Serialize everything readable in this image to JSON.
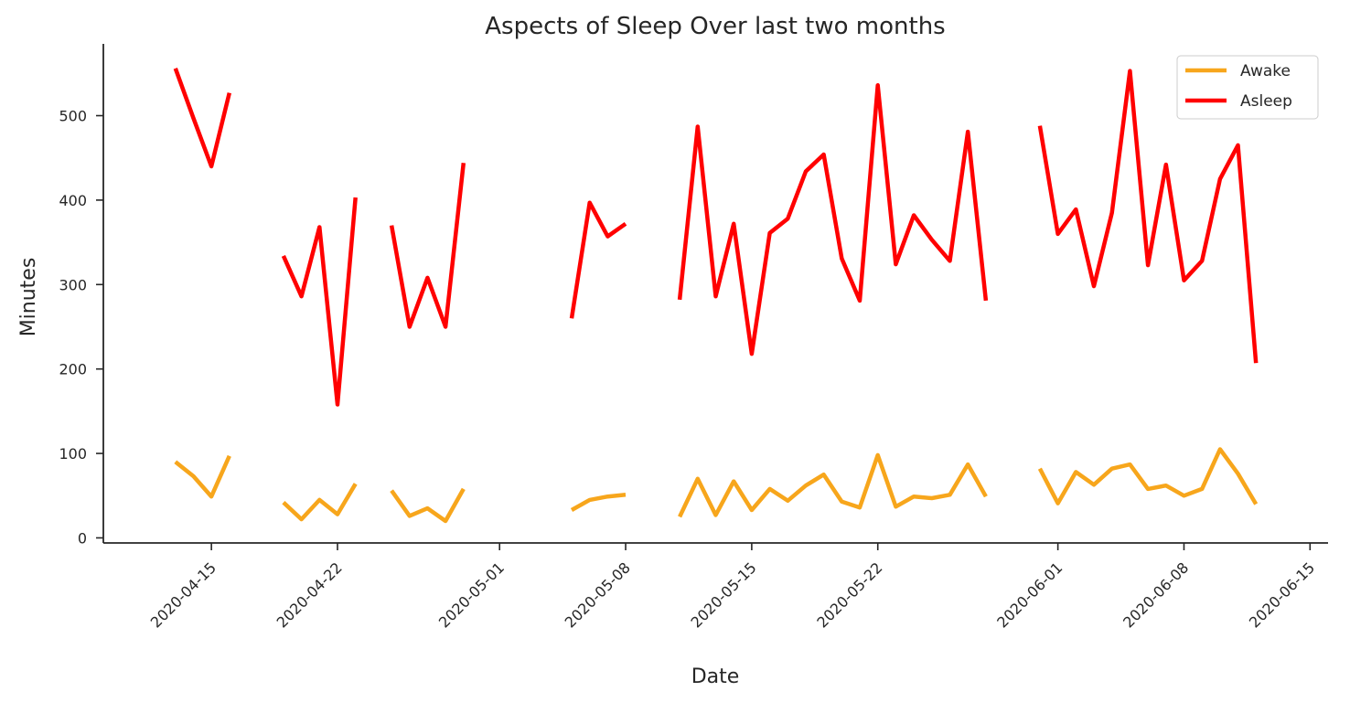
{
  "chart_data": {
    "type": "line",
    "title": "Aspects of Sleep Over last two months",
    "xlabel": "Date",
    "ylabel": "Minutes",
    "xlim": [
      "2020-04-09",
      "2020-06-16"
    ],
    "ylim": [
      -6,
      585
    ],
    "x_ticks": [
      "2020-04-15",
      "2020-04-22",
      "2020-05-01",
      "2020-05-08",
      "2020-05-15",
      "2020-05-22",
      "2020-06-01",
      "2020-06-08",
      "2020-06-15"
    ],
    "y_ticks": [
      0,
      100,
      200,
      300,
      400,
      500
    ],
    "grid": false,
    "legend_position": "top-right",
    "series": [
      {
        "name": "Awake",
        "color": "#f7a61c",
        "points": [
          [
            "2020-04-13",
            90
          ],
          [
            "2020-04-14",
            73
          ],
          [
            "2020-04-15",
            49
          ],
          [
            "2020-04-16",
            97
          ],
          [
            "2020-04-19",
            42
          ],
          [
            "2020-04-20",
            22
          ],
          [
            "2020-04-21",
            45
          ],
          [
            "2020-04-22",
            28
          ],
          [
            "2020-04-23",
            64
          ],
          [
            "2020-04-25",
            56
          ],
          [
            "2020-04-26",
            26
          ],
          [
            "2020-04-27",
            35
          ],
          [
            "2020-04-28",
            20
          ],
          [
            "2020-04-29",
            58
          ],
          [
            "2020-05-05",
            33
          ],
          [
            "2020-05-06",
            45
          ],
          [
            "2020-05-07",
            49
          ],
          [
            "2020-05-08",
            51
          ],
          [
            "2020-05-11",
            25
          ],
          [
            "2020-05-12",
            70
          ],
          [
            "2020-05-13",
            27
          ],
          [
            "2020-05-14",
            67
          ],
          [
            "2020-05-15",
            33
          ],
          [
            "2020-05-16",
            58
          ],
          [
            "2020-05-17",
            44
          ],
          [
            "2020-05-18",
            62
          ],
          [
            "2020-05-19",
            75
          ],
          [
            "2020-05-20",
            43
          ],
          [
            "2020-05-21",
            36
          ],
          [
            "2020-05-22",
            98
          ],
          [
            "2020-05-23",
            37
          ],
          [
            "2020-05-24",
            49
          ],
          [
            "2020-05-25",
            47
          ],
          [
            "2020-05-26",
            51
          ],
          [
            "2020-05-27",
            87
          ],
          [
            "2020-05-28",
            49
          ],
          [
            "2020-05-31",
            82
          ],
          [
            "2020-06-01",
            41
          ],
          [
            "2020-06-02",
            78
          ],
          [
            "2020-06-03",
            63
          ],
          [
            "2020-06-04",
            82
          ],
          [
            "2020-06-05",
            87
          ],
          [
            "2020-06-06",
            58
          ],
          [
            "2020-06-07",
            62
          ],
          [
            "2020-06-08",
            50
          ],
          [
            "2020-06-09",
            58
          ],
          [
            "2020-06-10",
            105
          ],
          [
            "2020-06-11",
            76
          ],
          [
            "2020-06-12",
            40
          ]
        ]
      },
      {
        "name": "Asleep",
        "color": "#ff0000",
        "points": [
          [
            "2020-04-13",
            556
          ],
          [
            "2020-04-14",
            497
          ],
          [
            "2020-04-15",
            440
          ],
          [
            "2020-04-16",
            527
          ],
          [
            "2020-04-19",
            334
          ],
          [
            "2020-04-20",
            286
          ],
          [
            "2020-04-21",
            368
          ],
          [
            "2020-04-22",
            158
          ],
          [
            "2020-04-23",
            403
          ],
          [
            "2020-04-25",
            370
          ],
          [
            "2020-04-26",
            250
          ],
          [
            "2020-04-27",
            308
          ],
          [
            "2020-04-28",
            250
          ],
          [
            "2020-04-29",
            444
          ],
          [
            "2020-05-05",
            260
          ],
          [
            "2020-05-06",
            397
          ],
          [
            "2020-05-07",
            357
          ],
          [
            "2020-05-08",
            372
          ],
          [
            "2020-05-11",
            282
          ],
          [
            "2020-05-12",
            487
          ],
          [
            "2020-05-13",
            286
          ],
          [
            "2020-05-14",
            372
          ],
          [
            "2020-05-15",
            218
          ],
          [
            "2020-05-16",
            361
          ],
          [
            "2020-05-17",
            378
          ],
          [
            "2020-05-18",
            434
          ],
          [
            "2020-05-19",
            454
          ],
          [
            "2020-05-20",
            331
          ],
          [
            "2020-05-21",
            281
          ],
          [
            "2020-05-22",
            536
          ],
          [
            "2020-05-23",
            324
          ],
          [
            "2020-05-24",
            382
          ],
          [
            "2020-05-25",
            353
          ],
          [
            "2020-05-26",
            328
          ],
          [
            "2020-05-27",
            481
          ],
          [
            "2020-05-28",
            281
          ],
          [
            "2020-05-31",
            488
          ],
          [
            "2020-06-01",
            360
          ],
          [
            "2020-06-02",
            389
          ],
          [
            "2020-06-03",
            298
          ],
          [
            "2020-06-04",
            385
          ],
          [
            "2020-06-05",
            553
          ],
          [
            "2020-06-06",
            323
          ],
          [
            "2020-06-07",
            442
          ],
          [
            "2020-06-08",
            305
          ],
          [
            "2020-06-09",
            328
          ],
          [
            "2020-06-10",
            425
          ],
          [
            "2020-06-11",
            465
          ],
          [
            "2020-06-12",
            207
          ]
        ]
      }
    ]
  }
}
